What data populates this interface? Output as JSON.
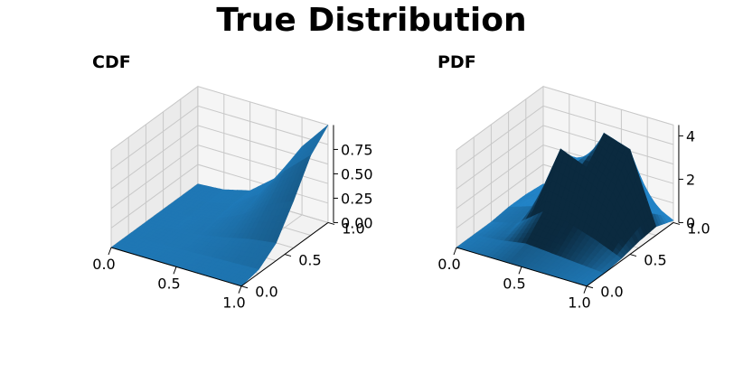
{
  "figure": {
    "title": "True Distribution"
  },
  "chart_data": [
    {
      "type": "surface3d",
      "subtitle": "CDF",
      "x_ticks": [
        "0.0",
        "0.5",
        "1.0"
      ],
      "y_ticks": [
        "0.0",
        "0.5",
        "1.0"
      ],
      "z_ticks": [
        "0.00",
        "0.25",
        "0.50",
        "0.75"
      ],
      "xlim": [
        0,
        1
      ],
      "ylim": [
        0,
        1
      ],
      "zlim": [
        0,
        1
      ],
      "grid": true,
      "color": "#1f77b4",
      "grid_x": [
        0.0,
        0.2,
        0.4,
        0.6,
        0.8,
        1.0
      ],
      "grid_y": [
        0.0,
        0.2,
        0.4,
        0.6,
        0.8,
        1.0
      ],
      "z": [
        [
          0.0,
          0.0,
          0.0,
          0.0,
          0.0,
          0.0
        ],
        [
          0.0,
          0.0,
          0.01,
          0.01,
          0.02,
          0.02
        ],
        [
          0.0,
          0.01,
          0.03,
          0.06,
          0.08,
          0.09
        ],
        [
          0.0,
          0.02,
          0.08,
          0.18,
          0.26,
          0.3
        ],
        [
          0.0,
          0.03,
          0.14,
          0.36,
          0.58,
          0.7
        ],
        [
          0.0,
          0.04,
          0.18,
          0.48,
          0.82,
          1.0
        ]
      ]
    },
    {
      "type": "surface3d",
      "subtitle": "PDF",
      "x_ticks": [
        "0.0",
        "0.5",
        "1.0"
      ],
      "y_ticks": [
        "0.0",
        "0.5",
        "1.0"
      ],
      "z_ticks": [
        "0",
        "2",
        "4"
      ],
      "xlim": [
        0,
        1
      ],
      "ylim": [
        0,
        1
      ],
      "zlim": [
        0,
        4.5
      ],
      "grid": true,
      "color": "#1f77b4",
      "grid_x": [
        0.0,
        0.2,
        0.4,
        0.6,
        0.8,
        1.0
      ],
      "grid_y": [
        0.0,
        0.2,
        0.4,
        0.6,
        0.8,
        1.0
      ],
      "z": [
        [
          0.0,
          0.0,
          0.0,
          0.1,
          0.1,
          0.0
        ],
        [
          0.0,
          0.1,
          0.3,
          0.5,
          0.4,
          0.1
        ],
        [
          0.0,
          0.3,
          1.2,
          3.5,
          1.5,
          0.3
        ],
        [
          0.0,
          0.2,
          1.0,
          3.0,
          4.0,
          0.8
        ],
        [
          0.0,
          0.1,
          0.6,
          2.2,
          3.6,
          0.7
        ],
        [
          0.0,
          0.0,
          0.1,
          0.3,
          0.4,
          0.1
        ]
      ]
    }
  ]
}
